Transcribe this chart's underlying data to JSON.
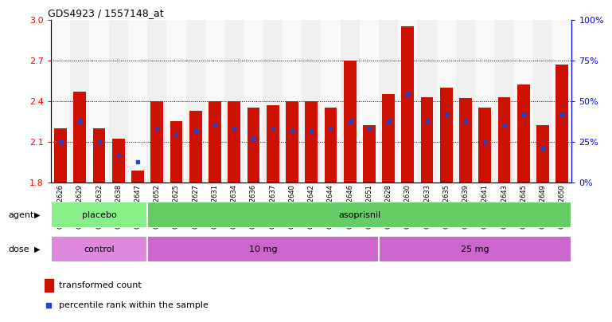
{
  "title": "GDS4923 / 1557148_at",
  "samples": [
    "GSM1152626",
    "GSM1152629",
    "GSM1152632",
    "GSM1152638",
    "GSM1152647",
    "GSM1152652",
    "GSM1152625",
    "GSM1152627",
    "GSM1152631",
    "GSM1152634",
    "GSM1152636",
    "GSM1152637",
    "GSM1152640",
    "GSM1152642",
    "GSM1152644",
    "GSM1152646",
    "GSM1152651",
    "GSM1152628",
    "GSM1152630",
    "GSM1152633",
    "GSM1152635",
    "GSM1152639",
    "GSM1152641",
    "GSM1152643",
    "GSM1152645",
    "GSM1152649",
    "GSM1152650"
  ],
  "bar_values": [
    2.2,
    2.47,
    2.2,
    2.12,
    1.89,
    2.4,
    2.25,
    2.33,
    2.4,
    2.4,
    2.35,
    2.37,
    2.4,
    2.4,
    2.35,
    2.7,
    2.22,
    2.45,
    2.95,
    2.43,
    2.5,
    2.42,
    2.35,
    2.43,
    2.52,
    2.22,
    2.67
  ],
  "percentile_values": [
    2.1,
    2.25,
    2.1,
    2.0,
    1.95,
    2.2,
    2.15,
    2.18,
    2.22,
    2.2,
    2.12,
    2.2,
    2.18,
    2.18,
    2.2,
    2.25,
    2.2,
    2.25,
    2.45,
    2.25,
    2.3,
    2.25,
    2.1,
    2.22,
    2.3,
    2.05,
    2.3
  ],
  "ymin": 1.8,
  "ymax": 3.0,
  "yticks": [
    1.8,
    2.1,
    2.4,
    2.7,
    3.0
  ],
  "grid_lines": [
    2.1,
    2.4,
    2.7
  ],
  "bar_color": "#cc1100",
  "dot_color": "#2244cc",
  "agent_groups": [
    {
      "label": "placebo",
      "start": 0,
      "end": 5,
      "color": "#88ee88"
    },
    {
      "label": "asoprisnil",
      "start": 5,
      "end": 27,
      "color": "#66cc66"
    }
  ],
  "dose_groups": [
    {
      "label": "control",
      "start": 0,
      "end": 5,
      "color": "#dd88dd"
    },
    {
      "label": "10 mg",
      "start": 5,
      "end": 17,
      "color": "#cc66cc"
    },
    {
      "label": "25 mg",
      "start": 17,
      "end": 27,
      "color": "#cc66cc"
    }
  ],
  "right_yticks_pct": [
    0,
    25,
    50,
    75,
    100
  ]
}
